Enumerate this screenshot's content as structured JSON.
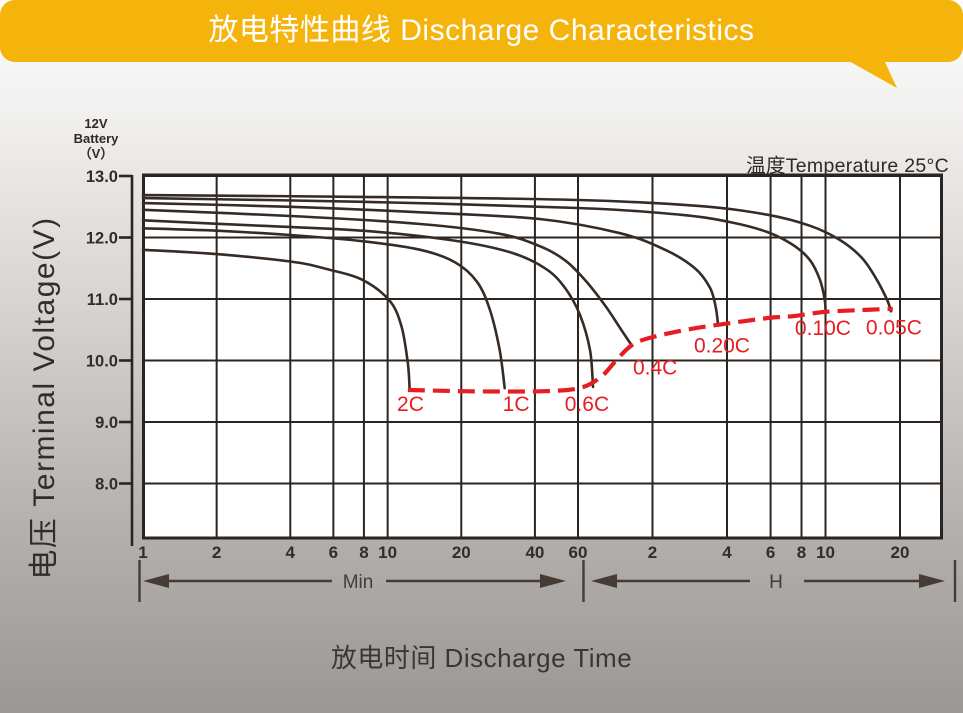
{
  "banner": {
    "title": "放电特性曲线 Discharge Characteristics"
  },
  "battery_label": {
    "line1": "12V",
    "line2": "Battery",
    "line3": "（V）"
  },
  "y_axis_title": "电压 Terminal Voltage(V)",
  "x_axis_title": "放电时间 Discharge Time",
  "temperature_label": "温度Temperature 25°C",
  "colors": {
    "banner_bg": "#F5B40C",
    "banner_text": "#FFFFFF",
    "grid": "#2b2521",
    "curve": "#362c25",
    "cutoff_red": "#E61E23",
    "axis_text": "#332c27",
    "arrow": "#473c35"
  },
  "chart_data": {
    "type": "line",
    "title": "放电特性曲线 Discharge Characteristics",
    "subtitle": "温度Temperature 25°C",
    "xlabel": "放电时间 Discharge Time",
    "ylabel": "电压 Terminal Voltage(V)",
    "x_axis": {
      "scale": "log",
      "grid": true,
      "sections": [
        {
          "name": "Min",
          "unit": "minutes",
          "ticks": [
            {
              "label": "1",
              "minutes": 1
            },
            {
              "label": "2",
              "minutes": 2
            },
            {
              "label": "4",
              "minutes": 4
            },
            {
              "label": "6",
              "minutes": 6
            },
            {
              "label": "8",
              "minutes": 8
            },
            {
              "label": "10",
              "minutes": 10
            },
            {
              "label": "20",
              "minutes": 20
            },
            {
              "label": "40",
              "minutes": 40
            },
            {
              "label": "60",
              "minutes": 60
            }
          ]
        },
        {
          "name": "H",
          "unit": "hours",
          "ticks": [
            {
              "label": "2",
              "minutes": 120
            },
            {
              "label": "4",
              "minutes": 240
            },
            {
              "label": "6",
              "minutes": 360
            },
            {
              "label": "8",
              "minutes": 480
            },
            {
              "label": "10",
              "minutes": 600
            },
            {
              "label": "20",
              "minutes": 1200
            }
          ]
        }
      ]
    },
    "y_axis": {
      "unit": "V",
      "ticks": [
        {
          "label": "13.0",
          "value": 13.0
        },
        {
          "label": "12.0",
          "value": 12.0
        },
        {
          "label": "11.0",
          "value": 11.0
        },
        {
          "label": "10.0",
          "value": 10.0
        },
        {
          "label": "9.0",
          "value": 9.0
        },
        {
          "label": "8.0",
          "value": 8.0
        }
      ],
      "range": [
        7.1,
        13.0
      ]
    },
    "series": [
      {
        "name": "0.05C",
        "points": [
          [
            1,
            12.69
          ],
          [
            7.9,
            12.66
          ],
          [
            60,
            12.61
          ],
          [
            187,
            12.51
          ],
          [
            349,
            12.37
          ],
          [
            520,
            12.19
          ],
          [
            686,
            11.96
          ],
          [
            841,
            11.67
          ],
          [
            968,
            11.31
          ],
          [
            1066,
            10.98
          ],
          [
            1104,
            10.8
          ]
        ]
      },
      {
        "name": "0.10C",
        "points": [
          [
            1,
            12.64
          ],
          [
            7.9,
            12.58
          ],
          [
            60,
            12.48
          ],
          [
            155,
            12.37
          ],
          [
            247,
            12.25
          ],
          [
            349,
            12.09
          ],
          [
            443,
            11.88
          ],
          [
            520,
            11.63
          ],
          [
            570,
            11.31
          ],
          [
            596,
            10.98
          ],
          [
            600,
            10.78
          ]
        ]
      },
      {
        "name": "0.20C",
        "points": [
          [
            1,
            12.56
          ],
          [
            4,
            12.5
          ],
          [
            13.6,
            12.41
          ],
          [
            41.8,
            12.3
          ],
          [
            88.7,
            12.07
          ],
          [
            135,
            11.8
          ],
          [
            178,
            11.5
          ],
          [
            205,
            11.18
          ],
          [
            216,
            10.87
          ],
          [
            221,
            10.58
          ]
        ]
      },
      {
        "name": "0.4C",
        "points": [
          [
            1,
            12.45
          ],
          [
            4,
            12.35
          ],
          [
            13.6,
            12.22
          ],
          [
            28.7,
            12.06
          ],
          [
            41.8,
            11.86
          ],
          [
            53.1,
            11.63
          ],
          [
            64,
            11.31
          ],
          [
            77,
            10.9
          ],
          [
            88.7,
            10.53
          ],
          [
            98,
            10.27
          ]
        ]
      },
      {
        "name": "0.6C",
        "points": [
          [
            1,
            12.28
          ],
          [
            2.7,
            12.2
          ],
          [
            7.9,
            12.11
          ],
          [
            18,
            11.96
          ],
          [
            31.7,
            11.76
          ],
          [
            44,
            11.5
          ],
          [
            53.1,
            11.18
          ],
          [
            61.1,
            10.74
          ],
          [
            67.1,
            10.17
          ],
          [
            69,
            9.57
          ]
        ]
      },
      {
        "name": "1C",
        "points": [
          [
            1,
            12.15
          ],
          [
            2,
            12.11
          ],
          [
            4,
            12.04
          ],
          [
            7.9,
            11.94
          ],
          [
            13.6,
            11.8
          ],
          [
            18.8,
            11.6
          ],
          [
            23.2,
            11.28
          ],
          [
            26.2,
            10.82
          ],
          [
            28.7,
            10.17
          ],
          [
            30.1,
            9.55
          ]
        ]
      },
      {
        "name": "2C",
        "points": [
          [
            1,
            11.8
          ],
          [
            2,
            11.73
          ],
          [
            4,
            11.61
          ],
          [
            5.6,
            11.49
          ],
          [
            7.9,
            11.31
          ],
          [
            10.2,
            10.97
          ],
          [
            11.4,
            10.55
          ],
          [
            12.1,
            9.95
          ],
          [
            12.3,
            9.54
          ]
        ]
      }
    ],
    "cutoff_line": {
      "name": "discharge-end-voltage",
      "style": "dashed-red",
      "points": [
        [
          12.1,
          9.52
        ],
        [
          21.7,
          9.5
        ],
        [
          42,
          9.5
        ],
        [
          60.6,
          9.55
        ],
        [
          73.6,
          9.72
        ],
        [
          84.7,
          9.98
        ],
        [
          95.5,
          10.2
        ],
        [
          107,
          10.32
        ],
        [
          135,
          10.43
        ],
        [
          181,
          10.53
        ],
        [
          221,
          10.58
        ],
        [
          349,
          10.69
        ],
        [
          443,
          10.72
        ],
        [
          596,
          10.79
        ],
        [
          828,
          10.82
        ],
        [
          1122,
          10.84
        ]
      ]
    },
    "curve_labels": [
      {
        "text": "2C",
        "t": 12.4,
        "v": 9.29
      },
      {
        "text": "1C",
        "t": 33.5,
        "v": 9.29
      },
      {
        "text": "0.6C",
        "t": 65.2,
        "v": 9.29
      },
      {
        "text": "0.4C",
        "t": 123,
        "v": 9.89
      },
      {
        "text": "0.20C",
        "t": 229,
        "v": 10.24
      },
      {
        "text": "0.10C",
        "t": 586,
        "v": 10.53
      },
      {
        "text": "0.05C",
        "t": 1134,
        "v": 10.54
      }
    ],
    "legend": "none"
  }
}
